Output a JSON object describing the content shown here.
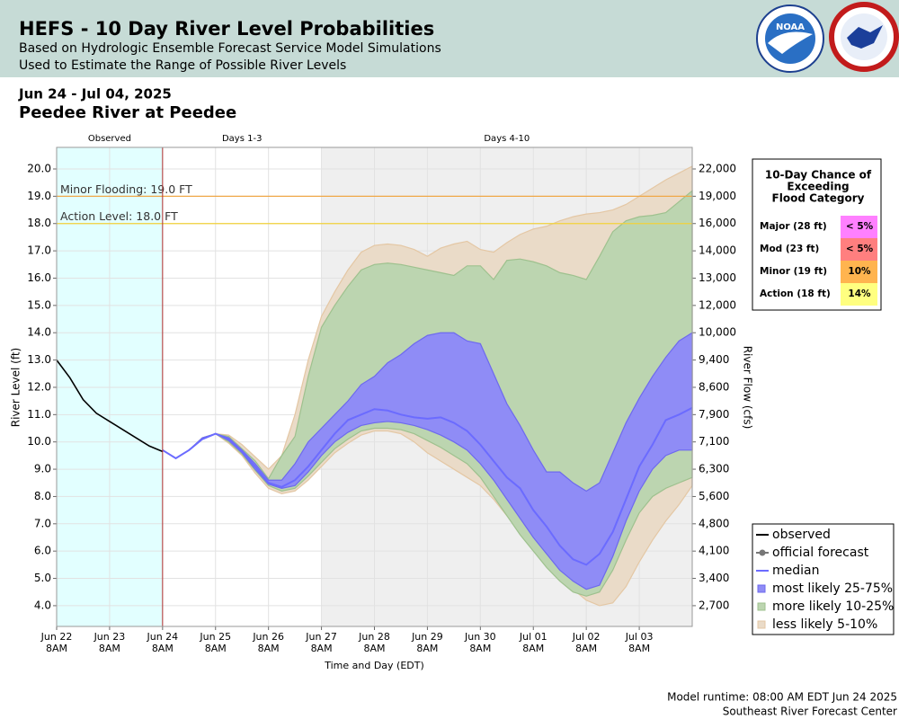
{
  "header": {
    "title": "HEFS - 10 Day River Level Probabilities",
    "subtitles": [
      "Based on Hydrologic Ensemble Forecast Service Model Simulations",
      "Used to Estimate the Range of Possible River Levels"
    ],
    "logo": "NOAA"
  },
  "date_range": "Jun 24 - Jul 04, 2025",
  "location": "Peedee River at Peedee",
  "footer": [
    "Model runtime: 08:00 AM EDT Jun 24 2025",
    "Southeast River Forecast Center"
  ],
  "chart_data": {
    "type": "line",
    "x_label": "Time and Day (EDT)",
    "y_label": "River Level (ft)",
    "y2_label": "River Flow (cfs)",
    "xlim": [
      "2025-06-22 08:00",
      "2025-07-04 08:00"
    ],
    "xticks": [
      {
        "value": "2025-06-22 08:00",
        "label": "Jun 22\n8AM"
      },
      {
        "value": "2025-06-23 08:00",
        "label": "Jun 23\n8AM"
      },
      {
        "value": "2025-06-24 08:00",
        "label": "Jun 24\n8AM"
      },
      {
        "value": "2025-06-25 08:00",
        "label": "Jun 25\n8AM"
      },
      {
        "value": "2025-06-26 08:00",
        "label": "Jun 26\n8AM"
      },
      {
        "value": "2025-06-27 08:00",
        "label": "Jun 27\n8AM"
      },
      {
        "value": "2025-06-28 08:00",
        "label": "Jun 28\n8AM"
      },
      {
        "value": "2025-06-29 08:00",
        "label": "Jun 29\n8AM"
      },
      {
        "value": "2025-06-30 08:00",
        "label": "Jun 30\n8AM"
      },
      {
        "value": "2025-07-01 08:00",
        "label": "Jul 01\n8AM"
      },
      {
        "value": "2025-07-02 08:00",
        "label": "Jul 02\n8AM"
      },
      {
        "value": "2025-07-03 08:00",
        "label": "Jul 03\n8AM"
      }
    ],
    "ylim": [
      3.24,
      20.79
    ],
    "yticks": [
      {
        "value": 4,
        "label": "4.0"
      },
      {
        "value": 5,
        "label": "5.0"
      },
      {
        "value": 6,
        "label": "6.0"
      },
      {
        "value": 7,
        "label": "7.0"
      },
      {
        "value": 8,
        "label": "8.0"
      },
      {
        "value": 9,
        "label": "9.0"
      },
      {
        "value": 10,
        "label": "10.0"
      },
      {
        "value": 11,
        "label": "11.0"
      },
      {
        "value": 12,
        "label": "12.0"
      },
      {
        "value": 13,
        "label": "13.0"
      },
      {
        "value": 14,
        "label": "14.0"
      },
      {
        "value": 15,
        "label": "15.0"
      },
      {
        "value": 16,
        "label": "16.0"
      },
      {
        "value": 17,
        "label": "17.0"
      },
      {
        "value": 18,
        "label": "18.0"
      },
      {
        "value": 19,
        "label": "19.0"
      },
      {
        "value": 20,
        "label": "20.0"
      }
    ],
    "y2ticks": [
      {
        "value": 2700,
        "label": "2,700"
      },
      {
        "value": 3400,
        "label": "3,400"
      },
      {
        "value": 4100,
        "label": "4,100"
      },
      {
        "value": 4800,
        "label": "4,800"
      },
      {
        "value": 5600,
        "label": "5,600"
      },
      {
        "value": 6300,
        "label": "6,300"
      },
      {
        "value": 7100,
        "label": "7,100"
      },
      {
        "value": 7900,
        "label": "7,900"
      },
      {
        "value": 8600,
        "label": "8,600"
      },
      {
        "value": 9400,
        "label": "9,400"
      },
      {
        "value": 10000,
        "label": "10,000"
      },
      {
        "value": 12000,
        "label": "12,000"
      },
      {
        "value": 13000,
        "label": "13,000"
      },
      {
        "value": 14000,
        "label": "14,000"
      },
      {
        "value": 16000,
        "label": "16,000"
      },
      {
        "value": 19000,
        "label": "19,000"
      },
      {
        "value": 22000,
        "label": "22,000"
      }
    ],
    "grid": true,
    "regions": [
      {
        "label": "Observed",
        "start": "2025-06-22 08:00",
        "end": "2025-06-24 08:00",
        "color": "#e2ffff"
      },
      {
        "label": "Days 1-3",
        "start": "2025-06-24 08:00",
        "end": "2025-06-27 08:00",
        "color": "#ffffff"
      },
      {
        "label": "Days 4-10",
        "start": "2025-06-27 08:00",
        "end": "2025-07-04 08:00",
        "color": "#efefef"
      }
    ],
    "thresholds": [
      {
        "label": "Minor Flooding: 19.0 FT",
        "value": 19,
        "color": "#f0a848"
      },
      {
        "label": "Action Level: 18.0 FT",
        "value": 18,
        "color": "#f2d23a"
      }
    ],
    "x": [
      "2025-06-22 08:00",
      "2025-06-22 14:00",
      "2025-06-22 20:00",
      "2025-06-23 02:00",
      "2025-06-23 08:00",
      "2025-06-23 14:00",
      "2025-06-23 20:00",
      "2025-06-24 02:00",
      "2025-06-24 08:00",
      "2025-06-24 14:00",
      "2025-06-24 20:00",
      "2025-06-25 02:00",
      "2025-06-25 08:00",
      "2025-06-25 14:00",
      "2025-06-25 20:00",
      "2025-06-26 02:00",
      "2025-06-26 08:00",
      "2025-06-26 14:00",
      "2025-06-26 20:00",
      "2025-06-27 02:00",
      "2025-06-27 08:00",
      "2025-06-27 14:00",
      "2025-06-27 20:00",
      "2025-06-28 02:00",
      "2025-06-28 08:00",
      "2025-06-28 14:00",
      "2025-06-28 20:00",
      "2025-06-29 02:00",
      "2025-06-29 08:00",
      "2025-06-29 14:00",
      "2025-06-29 20:00",
      "2025-06-30 02:00",
      "2025-06-30 08:00",
      "2025-06-30 14:00",
      "2025-06-30 20:00",
      "2025-07-01 02:00",
      "2025-07-01 08:00",
      "2025-07-01 14:00",
      "2025-07-01 20:00",
      "2025-07-02 02:00",
      "2025-07-02 08:00",
      "2025-07-02 14:00",
      "2025-07-02 20:00",
      "2025-07-03 02:00",
      "2025-07-03 08:00",
      "2025-07-03 14:00",
      "2025-07-03 20:00",
      "2025-07-04 02:00",
      "2025-07-04 08:00"
    ],
    "series": [
      {
        "name": "observed",
        "color": "#000000",
        "style": "line",
        "values": [
          13.0,
          12.35,
          11.55,
          11.05,
          10.75,
          10.45,
          10.15,
          9.85,
          9.65,
          null,
          null,
          null,
          null,
          null,
          null,
          null,
          null,
          null,
          null,
          null,
          null,
          null,
          null,
          null,
          null,
          null,
          null,
          null,
          null,
          null,
          null,
          null,
          null,
          null,
          null,
          null,
          null,
          null,
          null,
          null,
          null,
          null,
          null,
          null,
          null,
          null,
          null,
          null,
          null
        ]
      },
      {
        "name": "official forecast",
        "color": "#777777",
        "style": "line-dot",
        "values": [
          null,
          null,
          null,
          null,
          null,
          null,
          null,
          null,
          null,
          null,
          null,
          null,
          null,
          null,
          null,
          null,
          null,
          null,
          null,
          null,
          null,
          null,
          null,
          null,
          null,
          null,
          null,
          null,
          null,
          null,
          null,
          null,
          null,
          null,
          null,
          null,
          null,
          null,
          null,
          null,
          null,
          null,
          null,
          null,
          null,
          null,
          null,
          null,
          null
        ]
      },
      {
        "name": "median",
        "color": "#6b6bff",
        "style": "line",
        "values": [
          null,
          null,
          null,
          null,
          null,
          null,
          null,
          null,
          9.7,
          9.4,
          9.7,
          10.1,
          10.3,
          10.1,
          9.65,
          9.1,
          8.5,
          8.35,
          8.6,
          9.1,
          9.7,
          10.3,
          10.8,
          11.0,
          11.2,
          11.15,
          11.0,
          10.9,
          10.85,
          10.9,
          10.7,
          10.4,
          9.9,
          9.3,
          8.7,
          8.3,
          7.5,
          6.9,
          6.2,
          5.7,
          5.5,
          5.9,
          6.7,
          7.9,
          9.1,
          9.9,
          10.8,
          11.0,
          11.25
        ]
      },
      {
        "name": "most likely 25-75%",
        "color": "#8f8cf6",
        "edge": "#6d69ee",
        "style": "band",
        "upper": [
          null,
          null,
          null,
          null,
          null,
          null,
          null,
          null,
          9.7,
          9.4,
          9.7,
          10.15,
          10.3,
          10.15,
          9.7,
          9.2,
          8.6,
          8.6,
          9.2,
          10.0,
          10.5,
          11.0,
          11.5,
          12.1,
          12.4,
          12.9,
          13.2,
          13.6,
          13.9,
          14.0,
          14.0,
          13.7,
          13.6,
          12.5,
          11.4,
          10.6,
          9.7,
          8.9,
          8.9,
          8.5,
          8.2,
          8.5,
          9.6,
          10.7,
          11.6,
          12.4,
          13.1,
          13.7,
          14.0
        ],
        "lower": [
          null,
          null,
          null,
          null,
          null,
          null,
          null,
          null,
          9.7,
          9.4,
          9.7,
          10.1,
          10.3,
          10.05,
          9.6,
          9.0,
          8.45,
          8.3,
          8.4,
          8.9,
          9.5,
          10.0,
          10.35,
          10.6,
          10.7,
          10.75,
          10.7,
          10.6,
          10.45,
          10.25,
          10.0,
          9.7,
          9.2,
          8.6,
          7.9,
          7.2,
          6.5,
          5.9,
          5.3,
          4.9,
          4.6,
          4.75,
          5.8,
          7.1,
          8.2,
          9.0,
          9.5,
          9.7,
          9.7
        ]
      },
      {
        "name": "more likely 10-25%",
        "color": "#bcd5b0",
        "edge": "#9ec18e",
        "style": "band",
        "upper": [
          null,
          null,
          null,
          null,
          null,
          null,
          null,
          null,
          9.7,
          9.4,
          9.7,
          10.15,
          10.3,
          10.2,
          9.75,
          9.3,
          8.65,
          9.5,
          10.2,
          12.4,
          14.2,
          15.0,
          15.7,
          16.3,
          16.5,
          16.55,
          16.5,
          16.4,
          16.3,
          16.2,
          16.1,
          16.45,
          16.45,
          15.95,
          16.65,
          16.7,
          16.6,
          16.45,
          16.2,
          16.1,
          15.95,
          16.8,
          17.7,
          18.1,
          18.25,
          18.3,
          18.4,
          18.8,
          19.2
        ],
        "lower": [
          null,
          null,
          null,
          null,
          null,
          null,
          null,
          null,
          9.7,
          9.4,
          9.7,
          10.1,
          10.3,
          10.0,
          9.55,
          8.95,
          8.4,
          8.2,
          8.3,
          8.75,
          9.25,
          9.75,
          10.1,
          10.4,
          10.5,
          10.5,
          10.45,
          10.3,
          10.05,
          9.8,
          9.5,
          9.2,
          8.7,
          8.0,
          7.3,
          6.6,
          6.0,
          5.4,
          4.9,
          4.5,
          4.35,
          4.5,
          5.3,
          6.4,
          7.4,
          8.0,
          8.3,
          8.5,
          8.7
        ]
      },
      {
        "name": "less likely 5-10%",
        "color": "#eadbc8",
        "edge": "#e4c7a4",
        "style": "band",
        "upper": [
          null,
          null,
          null,
          null,
          null,
          null,
          null,
          null,
          9.7,
          9.4,
          9.7,
          10.15,
          10.3,
          10.25,
          9.9,
          9.45,
          9.0,
          9.5,
          11.0,
          13.0,
          14.6,
          15.5,
          16.3,
          16.95,
          17.2,
          17.25,
          17.2,
          17.05,
          16.8,
          17.1,
          17.25,
          17.35,
          17.05,
          16.95,
          17.3,
          17.6,
          17.8,
          17.9,
          18.1,
          18.25,
          18.35,
          18.4,
          18.5,
          18.7,
          19.0,
          19.3,
          19.6,
          19.85,
          20.1
        ],
        "lower": [
          null,
          null,
          null,
          null,
          null,
          null,
          null,
          null,
          9.7,
          9.4,
          9.7,
          10.1,
          10.3,
          9.95,
          9.5,
          8.85,
          8.3,
          8.1,
          8.2,
          8.6,
          9.1,
          9.6,
          9.95,
          10.25,
          10.4,
          10.4,
          10.3,
          10.0,
          9.6,
          9.3,
          9.0,
          8.7,
          8.4,
          7.9,
          7.3,
          6.7,
          6.1,
          5.5,
          5.0,
          4.6,
          4.2,
          4.0,
          4.1,
          4.7,
          5.6,
          6.4,
          7.1,
          7.7,
          8.4
        ]
      }
    ],
    "flood_table": {
      "title_lines": [
        "10-Day Chance of",
        "Exceeding",
        "Flood Category"
      ],
      "rows": [
        {
          "label": "Major (28 ft)",
          "chance": "< 5%",
          "color": "#ff80ff"
        },
        {
          "label": "Mod (23 ft)",
          "chance": "< 5%",
          "color": "#ff7f7f"
        },
        {
          "label": "Minor (19 ft)",
          "chance": "10%",
          "color": "#ffb44f"
        },
        {
          "label": "Action (18 ft)",
          "chance": "14%",
          "color": "#ffff80"
        }
      ]
    }
  }
}
